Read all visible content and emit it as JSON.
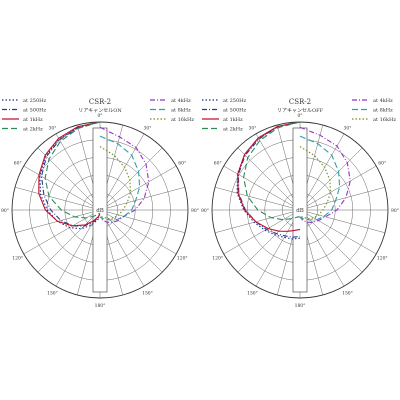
{
  "chart_data": [
    {
      "type": "polar",
      "title": "CSR-2",
      "subtitle": "リアキャンセルON",
      "center_label": "dB",
      "angle_labels": [
        "0°",
        "30°",
        "60°",
        "90°",
        "120°",
        "150°",
        "180°"
      ],
      "radial_range_db": [
        -25,
        0
      ],
      "grid": true,
      "legend_left": [
        {
          "name": "at 250Hz",
          "color": "#1f2f8f",
          "dash": "1.5,2"
        },
        {
          "name": "at 500Hz",
          "color": "#2d3a8c",
          "dash": "5,2,1,2"
        },
        {
          "name": "at 1kHz",
          "color": "#c0122a",
          "dash": ""
        },
        {
          "name": "at 2kHz",
          "color": "#2e8b57",
          "dash": "6,3"
        }
      ],
      "legend_right": [
        {
          "name": "at 4kHz",
          "color": "#9b30c8",
          "dash": "5,2,1,2"
        },
        {
          "name": "at 8kHz",
          "color": "#2aa0a8",
          "dash": "6,3"
        },
        {
          "name": "at 16kHz",
          "color": "#6b8e23",
          "dash": "1.5,2"
        }
      ],
      "angles_deg": [
        0,
        15,
        30,
        45,
        60,
        75,
        90,
        105,
        120,
        135,
        150,
        165,
        180
      ],
      "left_series": [
        {
          "name": "at 250Hz",
          "values_db": [
            0,
            -0.8,
            -1.8,
            -3.2,
            -5.3,
            -7.5,
            -10,
            -12.5,
            -15,
            -17.5,
            -20,
            -22,
            -23
          ]
        },
        {
          "name": "at 500Hz",
          "values_db": [
            0,
            -0.8,
            -2,
            -3.5,
            -5.8,
            -8.5,
            -11,
            -13.5,
            -16,
            -18.5,
            -21,
            -22.5,
            -23.5
          ]
        },
        {
          "name": "at 1kHz",
          "values_db": [
            0,
            -0.5,
            -1.5,
            -3,
            -5,
            -7,
            -9.5,
            -12.5,
            -16,
            -19,
            -21.5,
            -23,
            -24
          ]
        },
        {
          "name": "at 2kHz",
          "values_db": [
            0,
            -1,
            -2.5,
            -4.5,
            -7,
            -10,
            -14,
            -17.5,
            -20.5,
            -22.5,
            -23.5,
            -24,
            -24
          ]
        }
      ],
      "right_series": [
        {
          "name": "at 4kHz",
          "values_db": [
            -1.5,
            -3.5,
            -4.5,
            -6.5,
            -9,
            -12,
            -15,
            -18,
            -19,
            -20,
            -21,
            -22,
            -23
          ]
        },
        {
          "name": "at 8kHz",
          "values_db": [
            -4,
            -5.5,
            -7,
            -9.5,
            -12,
            -14.5,
            -16,
            -18,
            -19.5,
            -21,
            -22,
            -22.5,
            -23
          ]
        },
        {
          "name": "at 16kHz",
          "values_db": [
            -7,
            -9,
            -11,
            -13,
            -15,
            -17,
            -18.5,
            -19.5,
            -20.5,
            -21.5,
            -22.5,
            -23,
            -23.5
          ]
        }
      ]
    },
    {
      "type": "polar",
      "title": "CSR-2",
      "subtitle": "リアキャンセルOFF",
      "center_label": "dB",
      "angle_labels": [
        "0°",
        "30°",
        "60°",
        "90°",
        "120°",
        "150°",
        "180°"
      ],
      "radial_range_db": [
        -25,
        0
      ],
      "grid": true,
      "legend_left": [
        {
          "name": "at 250Hz",
          "color": "#1f2f8f",
          "dash": "1.5,2"
        },
        {
          "name": "at 500Hz",
          "color": "#2d3a8c",
          "dash": "5,2,1,2"
        },
        {
          "name": "at 1kHz",
          "color": "#c0122a",
          "dash": ""
        },
        {
          "name": "at 2kHz",
          "color": "#2e8b57",
          "dash": "6,3"
        }
      ],
      "legend_right": [
        {
          "name": "at 4kHz",
          "color": "#9b30c8",
          "dash": "5,2,1,2"
        },
        {
          "name": "at 8kHz",
          "color": "#2aa0a8",
          "dash": "6,3"
        },
        {
          "name": "at 16kHz",
          "color": "#6b8e23",
          "dash": "1.5,2"
        }
      ],
      "angles_deg": [
        0,
        15,
        30,
        45,
        60,
        75,
        90,
        105,
        120,
        135,
        150,
        165,
        180
      ],
      "left_series": [
        {
          "name": "at 250Hz",
          "values_db": [
            0,
            -0.5,
            -1.5,
            -2.8,
            -4.5,
            -6.5,
            -9,
            -11.5,
            -13.5,
            -15,
            -16,
            -16.5,
            -17
          ]
        },
        {
          "name": "at 500Hz",
          "values_db": [
            0,
            -0.5,
            -1.7,
            -3,
            -4.8,
            -7,
            -9.5,
            -12,
            -14,
            -15.5,
            -16.5,
            -17,
            -17.5
          ]
        },
        {
          "name": "at 1kHz",
          "values_db": [
            0,
            -0.4,
            -1.3,
            -2.7,
            -4.6,
            -6.8,
            -9.3,
            -12,
            -14.5,
            -16.5,
            -18,
            -19,
            -19.5
          ]
        },
        {
          "name": "at 2kHz",
          "values_db": [
            0,
            -0.8,
            -2.2,
            -4,
            -6.5,
            -9.5,
            -13,
            -16.5,
            -19.5,
            -21.5,
            -22.5,
            -23,
            -23
          ]
        }
      ],
      "right_series": [
        {
          "name": "at 4kHz",
          "values_db": [
            -1.5,
            -3,
            -4,
            -6,
            -8.5,
            -11.5,
            -14.5,
            -17.5,
            -19,
            -20,
            -21,
            -22,
            -23
          ]
        },
        {
          "name": "at 8kHz",
          "values_db": [
            -4,
            -5.5,
            -7,
            -9.5,
            -12,
            -14.5,
            -16,
            -18,
            -19.5,
            -21,
            -22,
            -22.5,
            -23
          ]
        },
        {
          "name": "at 16kHz",
          "values_db": [
            -7,
            -9,
            -11,
            -13,
            -15,
            -17,
            -18.5,
            -19.5,
            -20.5,
            -21.5,
            -22.5,
            -23,
            -23.5
          ]
        }
      ]
    }
  ]
}
